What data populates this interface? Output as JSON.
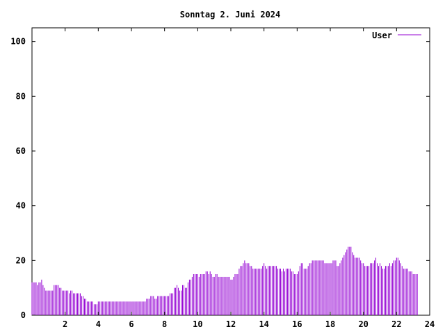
{
  "chart_data": {
    "type": "bar",
    "title": "Sonntag 2. Juni 2024",
    "xlabel": "",
    "ylabel": "",
    "xlim": [
      0,
      24
    ],
    "ylim": [
      0,
      105
    ],
    "x_ticks": [
      2,
      4,
      6,
      8,
      10,
      12,
      14,
      16,
      18,
      20,
      22,
      24
    ],
    "y_ticks": [
      0,
      20,
      40,
      60,
      80,
      100
    ],
    "grid": false,
    "legend_position": "top-right",
    "series": [
      {
        "name": "User",
        "color": "#9400d3",
        "x_step_minutes": 5,
        "values": [
          12,
          12,
          12,
          12,
          11,
          12,
          12,
          13,
          11,
          10,
          9,
          9,
          9,
          9,
          9,
          9,
          11,
          11,
          11,
          11,
          10,
          10,
          9,
          9,
          9,
          9,
          9,
          8,
          9,
          9,
          8,
          8,
          8,
          8,
          8,
          8,
          7,
          7,
          6,
          6,
          5,
          5,
          5,
          5,
          5,
          4,
          4,
          4,
          5,
          5,
          5,
          5,
          5,
          5,
          5,
          5,
          5,
          5,
          5,
          5,
          5,
          5,
          5,
          5,
          5,
          5,
          5,
          5,
          5,
          5,
          5,
          5,
          5,
          5,
          5,
          5,
          5,
          5,
          5,
          5,
          5,
          5,
          5,
          6,
          6,
          6,
          7,
          7,
          7,
          6,
          6,
          7,
          7,
          7,
          7,
          7,
          7,
          7,
          7,
          7,
          8,
          8,
          8,
          10,
          10,
          11,
          10,
          9,
          9,
          11,
          11,
          10,
          10,
          12,
          13,
          13,
          14,
          15,
          15,
          15,
          15,
          14,
          15,
          15,
          15,
          15,
          16,
          16,
          15,
          16,
          15,
          14,
          14,
          15,
          15,
          14,
          14,
          14,
          14,
          14,
          14,
          14,
          14,
          14,
          13,
          13,
          14,
          15,
          15,
          15,
          17,
          18,
          18,
          19,
          20,
          19,
          19,
          19,
          18,
          18,
          17,
          17,
          17,
          17,
          17,
          17,
          17,
          18,
          19,
          18,
          17,
          18,
          18,
          18,
          18,
          18,
          18,
          18,
          17,
          17,
          17,
          16,
          17,
          16,
          17,
          17,
          17,
          17,
          16,
          16,
          15,
          15,
          15,
          16,
          18,
          19,
          19,
          17,
          17,
          17,
          18,
          19,
          19,
          20,
          20,
          20,
          20,
          20,
          20,
          20,
          20,
          20,
          19,
          19,
          19,
          19,
          19,
          19,
          20,
          20,
          20,
          18,
          18,
          19,
          20,
          21,
          22,
          23,
          24,
          25,
          25,
          25,
          23,
          22,
          21,
          21,
          21,
          21,
          20,
          19,
          19,
          18,
          18,
          18,
          18,
          19,
          19,
          19,
          20,
          21,
          19,
          18,
          19,
          18,
          17,
          17,
          18,
          18,
          18,
          19,
          18,
          19,
          20,
          20,
          21,
          21,
          20,
          19,
          18,
          17,
          17,
          17,
          17,
          16,
          16,
          16,
          15,
          15,
          15,
          15
        ]
      }
    ]
  }
}
